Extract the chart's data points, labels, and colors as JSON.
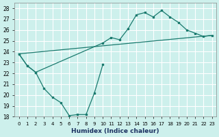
{
  "title": "",
  "xlabel": "Humidex (Indice chaleur)",
  "ylabel": "",
  "bg_color": "#cdf0ec",
  "grid_color": "#b0ddd8",
  "line_color": "#1a7a6e",
  "marker_color": "#1a7a6e",
  "xlim": [
    -0.5,
    23.5
  ],
  "ylim": [
    18,
    28.5
  ],
  "yticks": [
    18,
    19,
    20,
    21,
    22,
    23,
    24,
    25,
    26,
    27,
    28
  ],
  "xticks": [
    0,
    1,
    2,
    3,
    4,
    5,
    6,
    7,
    8,
    9,
    10,
    11,
    12,
    13,
    14,
    15,
    16,
    17,
    18,
    19,
    20,
    21,
    22,
    23
  ],
  "series_straight": {
    "x": [
      0,
      23
    ],
    "y": [
      23.8,
      25.5
    ]
  },
  "series_low": {
    "x": [
      0,
      1,
      2,
      3,
      4,
      5,
      6,
      7,
      8,
      9,
      10
    ],
    "y": [
      23.8,
      22.7,
      22.1,
      20.6,
      19.8,
      19.3,
      18.1,
      18.2,
      18.2,
      20.2,
      22.8
    ]
  },
  "series_high": {
    "x": [
      0,
      1,
      2,
      10,
      11,
      12,
      13,
      14,
      15,
      16,
      17,
      18,
      19,
      20,
      21,
      22,
      23
    ],
    "y": [
      23.8,
      22.7,
      22.1,
      24.8,
      25.3,
      25.1,
      26.1,
      27.4,
      27.6,
      27.2,
      27.8,
      27.2,
      26.7,
      26.0,
      25.7,
      25.4,
      25.5
    ]
  }
}
